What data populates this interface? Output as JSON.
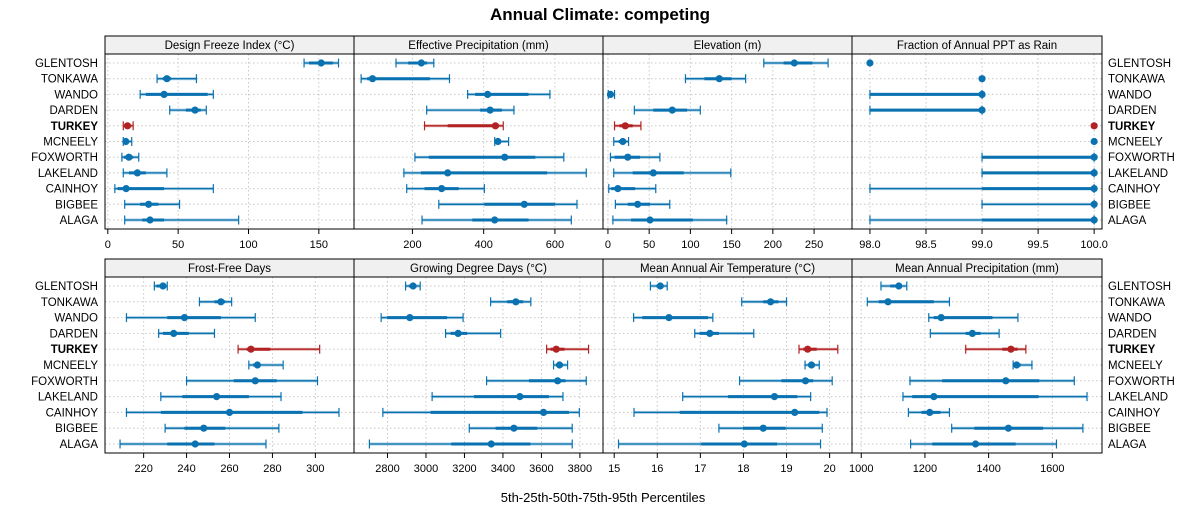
{
  "chart_data": {
    "type": "dotplot-percentiles",
    "title": "Annual Climate: competing",
    "xlabel": "5th-25th-50th-75th-95th Percentiles",
    "highlight_site": "TURKEY",
    "colors": {
      "default": "#0a72b0",
      "highlight": "#b22222",
      "strip_bg": "#f0f0f0",
      "grid": "#c8c8c8"
    },
    "sites": [
      "GLENTOSH",
      "TONKAWA",
      "WANDO",
      "DARDEN",
      "TURKEY",
      "MCNEELY",
      "FOXWORTH",
      "LAKELAND",
      "CAINHOY",
      "BIGBEE",
      "ALAGA"
    ],
    "percentile_labels": [
      "p5",
      "p25",
      "p50",
      "p75",
      "p95"
    ],
    "panels": [
      {
        "name": "Design Freeze Index (°C)",
        "xlim": [
          -2,
          175
        ],
        "ticks": [
          0,
          50,
          100,
          150
        ],
        "tick_labels": [
          "0",
          "50",
          "100",
          "150"
        ],
        "values": [
          [
            139.5,
            143,
            151.7,
            160,
            164
          ],
          [
            35,
            39,
            42,
            45,
            63
          ],
          [
            23,
            27,
            40,
            71,
            75
          ],
          [
            44,
            55.5,
            62,
            66,
            70
          ],
          [
            11,
            12.3,
            14,
            16,
            18
          ],
          [
            11,
            11.5,
            12.8,
            14.5,
            17
          ],
          [
            10,
            11.5,
            15,
            18,
            22
          ],
          [
            11,
            15,
            21,
            27,
            42
          ],
          [
            5,
            7,
            13,
            40,
            75
          ],
          [
            12,
            23,
            29,
            36,
            51
          ],
          [
            12,
            24.5,
            30,
            40,
            93
          ]
        ]
      },
      {
        "name": "Effective Precipitation (mm)",
        "xlim": [
          36,
          735
        ],
        "ticks": [
          200,
          400,
          600
        ],
        "tick_labels": [
          "200",
          "400",
          "600"
        ],
        "values": [
          [
            154,
            188,
            225,
            241,
            260
          ],
          [
            56,
            73,
            88,
            249,
            304
          ],
          [
            355,
            376,
            411,
            526,
            586
          ],
          [
            240,
            390,
            418,
            451,
            485
          ],
          [
            234,
            299,
            433,
            443,
            455
          ],
          [
            431,
            434,
            440,
            448,
            470
          ],
          [
            207,
            246,
            459,
            545,
            625
          ],
          [
            176,
            224,
            299,
            578,
            688
          ],
          [
            184,
            234,
            282,
            330,
            402
          ],
          [
            274,
            402,
            514,
            600,
            662
          ],
          [
            227,
            368,
            431,
            526,
            646
          ]
        ]
      },
      {
        "name": "Elevation (m)",
        "xlim": [
          -6,
          296
        ],
        "ticks": [
          0,
          50,
          100,
          150,
          200,
          250
        ],
        "tick_labels": [
          "0",
          "50",
          "100",
          "150",
          "200",
          "250"
        ],
        "values": [
          [
            189,
            213,
            226,
            248,
            267
          ],
          [
            94,
            117,
            135,
            150,
            167
          ],
          [
            0.4,
            1,
            3,
            5,
            8
          ],
          [
            32,
            55,
            78,
            96,
            112
          ],
          [
            8,
            14,
            21,
            30,
            40
          ],
          [
            7,
            13,
            18,
            22,
            25
          ],
          [
            3,
            8,
            24,
            39,
            63
          ],
          [
            7,
            30,
            55,
            92,
            149
          ],
          [
            1,
            4,
            12,
            33,
            58
          ],
          [
            9,
            24,
            36,
            51,
            75
          ],
          [
            6,
            28,
            51,
            103,
            144
          ]
        ]
      },
      {
        "name": "Fraction of Annual PPT as Rain",
        "xlim": [
          97.84,
          100.07
        ],
        "ticks": [
          98.0,
          98.5,
          99.0,
          99.5,
          100.0
        ],
        "tick_labels": [
          "98.0",
          "98.5",
          "99.0",
          "99.5",
          "100.0"
        ],
        "values": [
          [
            98,
            98,
            98,
            98,
            98
          ],
          [
            99,
            99,
            99,
            99,
            99
          ],
          [
            98,
            98,
            99,
            99,
            99
          ],
          [
            98,
            98,
            99,
            99,
            99
          ],
          [
            100,
            100,
            100,
            100,
            100
          ],
          [
            100,
            100,
            100,
            100,
            100
          ],
          [
            99,
            99,
            100,
            100,
            100
          ],
          [
            99,
            99,
            100,
            100,
            100
          ],
          [
            98,
            99,
            100,
            100,
            100
          ],
          [
            99,
            100,
            100,
            100,
            100
          ],
          [
            98,
            99,
            100,
            100,
            100
          ]
        ]
      },
      {
        "name": "Frost-Free Days",
        "xlim": [
          202,
          318
        ],
        "ticks": [
          220,
          240,
          260,
          280,
          300
        ],
        "tick_labels": [
          "220",
          "240",
          "260",
          "280",
          "300"
        ],
        "values": [
          [
            225,
            226,
            229,
            230,
            231
          ],
          [
            246,
            253,
            256,
            258,
            261
          ],
          [
            212,
            231,
            239,
            256,
            272
          ],
          [
            227,
            229,
            234,
            241,
            253
          ],
          [
            264,
            268,
            270,
            279,
            302
          ],
          [
            269,
            271,
            273,
            274,
            285
          ],
          [
            240,
            262,
            272,
            282,
            301
          ],
          [
            228,
            238,
            254,
            269,
            284
          ],
          [
            212,
            228,
            260,
            294,
            311
          ],
          [
            230,
            239,
            248,
            258,
            283
          ],
          [
            209,
            231,
            244,
            253,
            277
          ]
        ]
      },
      {
        "name": "Growing Degree Days (°C)",
        "xlim": [
          2626,
          3920
        ],
        "ticks": [
          2800,
          3000,
          3200,
          3400,
          3600,
          3800
        ],
        "tick_labels": [
          "2800",
          "3000",
          "3200",
          "3400",
          "3600",
          "3800"
        ],
        "values": [
          [
            2894,
            2911,
            2933,
            2951,
            2970
          ],
          [
            3336,
            3422,
            3467,
            3505,
            3545
          ],
          [
            2767,
            2798,
            2916,
            3110,
            3193
          ],
          [
            3102,
            3128,
            3167,
            3214,
            3388
          ],
          [
            3627,
            3648,
            3677,
            3720,
            3845
          ],
          [
            3663,
            3677,
            3694,
            3713,
            3736
          ],
          [
            3315,
            3535,
            3684,
            3725,
            3833
          ],
          [
            3032,
            3249,
            3488,
            3639,
            3712
          ],
          [
            2776,
            3024,
            3611,
            3743,
            3797
          ],
          [
            3225,
            3362,
            3457,
            3578,
            3760
          ],
          [
            2706,
            3131,
            3339,
            3543,
            3760
          ]
        ]
      },
      {
        "name": "Mean Annual Air Temperature (°C)",
        "xlim": [
          14.74,
          20.52
        ],
        "ticks": [
          15,
          16,
          17,
          18,
          19,
          20
        ],
        "tick_labels": [
          "15",
          "16",
          "17",
          "18",
          "19",
          "20"
        ],
        "values": [
          [
            15.84,
            15.98,
            16.07,
            16.13,
            16.23
          ],
          [
            17.96,
            18.46,
            18.63,
            18.81,
            19.0
          ],
          [
            15.45,
            15.65,
            16.27,
            17.18,
            17.29
          ],
          [
            16.87,
            16.98,
            17.22,
            17.43,
            18.24
          ],
          [
            19.29,
            19.39,
            19.49,
            19.7,
            20.19
          ],
          [
            19.43,
            19.5,
            19.58,
            19.66,
            19.76
          ],
          [
            17.91,
            18.88,
            19.44,
            19.62,
            20.06
          ],
          [
            16.59,
            17.64,
            18.72,
            19.25,
            19.56
          ],
          [
            15.46,
            16.52,
            19.19,
            19.76,
            19.94
          ],
          [
            17.43,
            17.99,
            18.46,
            18.98,
            19.83
          ],
          [
            15.1,
            17.02,
            18.02,
            18.78,
            19.79
          ]
        ]
      },
      {
        "name": "Mean Annual Precipitation (mm)",
        "xlim": [
          971,
          1756
        ],
        "ticks": [
          1000,
          1200,
          1400,
          1600
        ],
        "tick_labels": [
          "1000",
          "1200",
          "1400",
          "1600"
        ],
        "values": [
          [
            1062,
            1091,
            1118,
            1128,
            1143
          ],
          [
            1019,
            1055,
            1084,
            1228,
            1277
          ],
          [
            1212,
            1228,
            1251,
            1412,
            1492
          ],
          [
            1217,
            1328,
            1349,
            1375,
            1433
          ],
          [
            1328,
            1443,
            1470,
            1491,
            1517
          ],
          [
            1477,
            1483,
            1488,
            1501,
            1536
          ],
          [
            1153,
            1254,
            1454,
            1559,
            1669
          ],
          [
            1131,
            1160,
            1228,
            1557,
            1709
          ],
          [
            1148,
            1189,
            1215,
            1249,
            1277
          ],
          [
            1284,
            1355,
            1462,
            1571,
            1696
          ],
          [
            1155,
            1223,
            1359,
            1485,
            1613
          ]
        ]
      }
    ]
  }
}
